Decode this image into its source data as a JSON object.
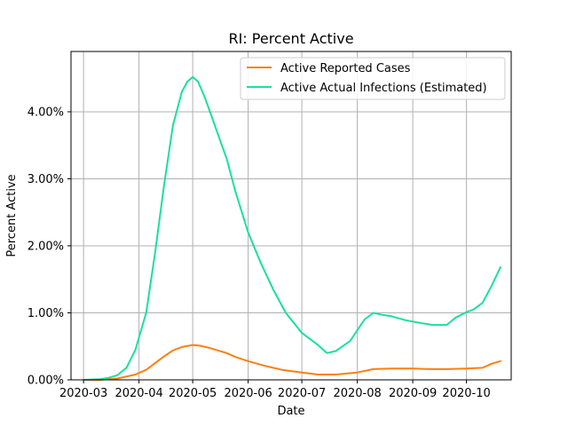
{
  "chart_data": {
    "type": "line",
    "title": "RI: Percent Active",
    "xlabel": "Date",
    "ylabel": "Percent Active",
    "x_ticks": [
      "2020-03",
      "2020-04",
      "2020-05",
      "2020-06",
      "2020-07",
      "2020-08",
      "2020-09",
      "2020-10"
    ],
    "y_ticks": [
      "0.00%",
      "1.00%",
      "2.00%",
      "3.00%",
      "4.00%"
    ],
    "y_tick_values": [
      0,
      1,
      2,
      3,
      4
    ],
    "xlim": [
      "2020-02-23",
      "2020-10-26"
    ],
    "ylim": [
      0,
      4.9
    ],
    "grid": true,
    "legend_position": "top-right",
    "series": [
      {
        "name": "Active Reported Cases",
        "color": "#ff7f0e",
        "x": [
          "2020-03-01",
          "2020-03-10",
          "2020-03-20",
          "2020-03-30",
          "2020-04-05",
          "2020-04-10",
          "2020-04-15",
          "2020-04-20",
          "2020-04-25",
          "2020-05-01",
          "2020-05-05",
          "2020-05-10",
          "2020-05-15",
          "2020-05-20",
          "2020-05-25",
          "2020-06-01",
          "2020-06-10",
          "2020-06-20",
          "2020-07-01",
          "2020-07-10",
          "2020-07-20",
          "2020-08-01",
          "2020-08-10",
          "2020-08-20",
          "2020-09-01",
          "2020-09-10",
          "2020-09-20",
          "2020-10-01",
          "2020-10-10",
          "2020-10-15",
          "2020-10-20"
        ],
        "y": [
          0.0,
          0.0,
          0.02,
          0.08,
          0.15,
          0.25,
          0.35,
          0.44,
          0.49,
          0.52,
          0.51,
          0.48,
          0.44,
          0.4,
          0.34,
          0.28,
          0.21,
          0.15,
          0.11,
          0.08,
          0.08,
          0.11,
          0.16,
          0.17,
          0.17,
          0.16,
          0.16,
          0.17,
          0.18,
          0.24,
          0.28
        ]
      },
      {
        "name": "Active Actual Infections (Estimated)",
        "color": "#1ae09b",
        "x": [
          "2020-03-01",
          "2020-03-10",
          "2020-03-15",
          "2020-03-20",
          "2020-03-25",
          "2020-03-30",
          "2020-04-05",
          "2020-04-10",
          "2020-04-15",
          "2020-04-20",
          "2020-04-25",
          "2020-04-28",
          "2020-05-01",
          "2020-05-04",
          "2020-05-08",
          "2020-05-12",
          "2020-05-16",
          "2020-05-20",
          "2020-05-25",
          "2020-06-01",
          "2020-06-08",
          "2020-06-15",
          "2020-06-22",
          "2020-07-01",
          "2020-07-10",
          "2020-07-15",
          "2020-07-20",
          "2020-07-28",
          "2020-08-05",
          "2020-08-10",
          "2020-08-15",
          "2020-08-20",
          "2020-08-28",
          "2020-09-05",
          "2020-09-12",
          "2020-09-20",
          "2020-09-25",
          "2020-10-01",
          "2020-10-05",
          "2020-10-10",
          "2020-10-15",
          "2020-10-20"
        ],
        "y": [
          0.0,
          0.01,
          0.03,
          0.07,
          0.18,
          0.45,
          1.0,
          1.9,
          2.9,
          3.8,
          4.3,
          4.45,
          4.52,
          4.45,
          4.2,
          3.9,
          3.6,
          3.3,
          2.8,
          2.2,
          1.75,
          1.35,
          1.0,
          0.7,
          0.52,
          0.4,
          0.43,
          0.58,
          0.9,
          1.0,
          0.97,
          0.95,
          0.89,
          0.85,
          0.82,
          0.82,
          0.93,
          1.01,
          1.05,
          1.15,
          1.4,
          1.68
        ]
      }
    ]
  }
}
